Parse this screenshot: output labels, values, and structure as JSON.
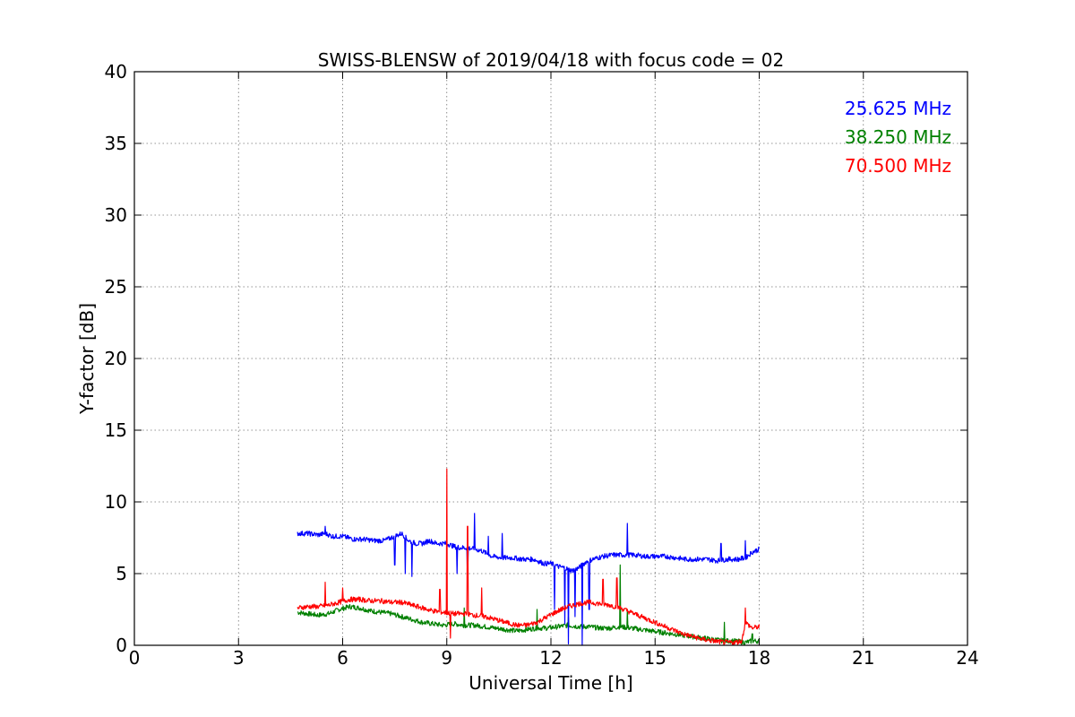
{
  "chart_data": {
    "type": "line",
    "title": "SWISS-BLENSW of 2019/04/18 with focus code = 02",
    "xlabel": "Universal Time [h]",
    "ylabel": "Y-factor [dB]",
    "xlim": [
      0,
      24
    ],
    "ylim": [
      0,
      40
    ],
    "xticks": [
      0,
      3,
      6,
      9,
      12,
      15,
      18,
      21,
      24
    ],
    "yticks": [
      0,
      5,
      10,
      15,
      20,
      25,
      30,
      35,
      40
    ],
    "grid": true,
    "legend_position": "top-right",
    "series": [
      {
        "name": "25.625 MHz",
        "color": "#0000ff",
        "x": [
          4.7,
          5.0,
          5.3,
          5.5,
          5.7,
          6.0,
          6.3,
          6.6,
          6.9,
          7.2,
          7.5,
          7.7,
          7.9,
          8.1,
          8.3,
          8.5,
          8.7,
          9.0,
          9.2,
          9.4,
          9.6,
          9.8,
          10.0,
          10.3,
          10.6,
          10.9,
          11.2,
          11.5,
          11.8,
          12.0,
          12.2,
          12.4,
          12.6,
          12.8,
          13.0,
          13.2,
          13.5,
          13.8,
          14.1,
          14.4,
          14.7,
          15.0,
          15.3,
          15.6,
          15.9,
          16.2,
          16.5,
          16.8,
          17.1,
          17.4,
          17.6,
          17.8,
          18.0
        ],
        "y": [
          7.8,
          7.8,
          7.7,
          7.8,
          7.6,
          7.6,
          7.4,
          7.4,
          7.3,
          7.3,
          7.6,
          7.8,
          7.3,
          7.1,
          7.1,
          7.3,
          7.1,
          7.1,
          6.9,
          6.8,
          6.8,
          6.7,
          6.6,
          6.2,
          6.1,
          6.1,
          6.0,
          6.0,
          5.7,
          5.7,
          5.5,
          5.4,
          5.2,
          5.4,
          5.8,
          6.0,
          6.2,
          6.3,
          6.3,
          6.3,
          6.2,
          6.2,
          6.2,
          6.1,
          6.0,
          6.0,
          6.0,
          5.9,
          6.0,
          6.0,
          6.1,
          6.5,
          6.7
        ],
        "spikes": [
          [
            5.5,
            8.3
          ],
          [
            7.5,
            5.6
          ],
          [
            7.8,
            5.0
          ],
          [
            8.0,
            4.8
          ],
          [
            9.3,
            5.0
          ],
          [
            9.6,
            5.2
          ],
          [
            9.8,
            9.2
          ],
          [
            10.2,
            7.6
          ],
          [
            10.6,
            7.8
          ],
          [
            12.1,
            2.5
          ],
          [
            12.4,
            1.5
          ],
          [
            12.5,
            0.1
          ],
          [
            12.7,
            2.0
          ],
          [
            12.9,
            0.0
          ],
          [
            13.1,
            2.5
          ],
          [
            14.2,
            8.5
          ],
          [
            16.9,
            7.1
          ],
          [
            17.6,
            7.3
          ]
        ]
      },
      {
        "name": "38.250 MHz",
        "color": "#008000",
        "x": [
          4.7,
          5.0,
          5.3,
          5.6,
          5.9,
          6.2,
          6.5,
          6.8,
          7.1,
          7.4,
          7.7,
          8.0,
          8.3,
          8.6,
          8.9,
          9.2,
          9.5,
          9.8,
          10.1,
          10.4,
          10.7,
          11.0,
          11.3,
          11.6,
          11.9,
          12.2,
          12.5,
          12.8,
          13.1,
          13.4,
          13.7,
          14.0,
          14.3,
          14.6,
          14.9,
          15.2,
          15.5,
          15.8,
          16.1,
          16.4,
          16.7,
          17.0,
          17.3,
          17.6,
          17.8,
          18.0
        ],
        "y": [
          2.3,
          2.2,
          2.1,
          2.2,
          2.5,
          2.7,
          2.6,
          2.4,
          2.3,
          2.2,
          2.0,
          1.8,
          1.6,
          1.5,
          1.4,
          1.5,
          1.4,
          1.4,
          1.3,
          1.2,
          1.1,
          1.0,
          1.1,
          1.2,
          1.2,
          1.3,
          1.4,
          1.3,
          1.3,
          1.2,
          1.2,
          1.3,
          1.2,
          1.1,
          1.0,
          0.9,
          0.8,
          0.7,
          0.6,
          0.5,
          0.4,
          0.3,
          0.3,
          0.2,
          0.3,
          0.3
        ],
        "spikes": [
          [
            9.5,
            2.6
          ],
          [
            11.6,
            2.5
          ],
          [
            12.5,
            2.0
          ],
          [
            14.0,
            5.6
          ],
          [
            14.2,
            2.5
          ],
          [
            17.0,
            1.6
          ],
          [
            17.8,
            0.8
          ]
        ]
      },
      {
        "name": "70.500 MHz",
        "color": "#ff0000",
        "x": [
          4.7,
          5.0,
          5.3,
          5.6,
          5.9,
          6.2,
          6.5,
          6.8,
          7.1,
          7.4,
          7.7,
          8.0,
          8.3,
          8.6,
          8.9,
          9.2,
          9.5,
          9.8,
          10.1,
          10.4,
          10.7,
          11.0,
          11.3,
          11.6,
          11.9,
          12.2,
          12.5,
          12.8,
          13.1,
          13.4,
          13.7,
          14.0,
          14.3,
          14.6,
          14.9,
          15.2,
          15.5,
          15.8,
          16.1,
          16.4,
          16.7,
          17.0,
          17.3,
          17.5,
          17.6,
          17.8,
          18.0
        ],
        "y": [
          2.6,
          2.7,
          2.7,
          2.8,
          3.0,
          3.2,
          3.2,
          3.1,
          3.1,
          3.0,
          3.0,
          2.8,
          2.6,
          2.4,
          2.3,
          2.2,
          2.2,
          2.1,
          2.0,
          1.8,
          1.6,
          1.4,
          1.4,
          1.6,
          2.0,
          2.4,
          2.7,
          2.9,
          3.0,
          2.9,
          2.8,
          2.6,
          2.3,
          2.0,
          1.7,
          1.4,
          1.1,
          0.8,
          0.6,
          0.4,
          0.3,
          0.2,
          0.2,
          0.3,
          1.6,
          1.2,
          1.3
        ],
        "spikes": [
          [
            5.5,
            4.4
          ],
          [
            6.0,
            4.0
          ],
          [
            8.8,
            3.9
          ],
          [
            9.0,
            12.3
          ],
          [
            9.1,
            0.5
          ],
          [
            9.6,
            8.3
          ],
          [
            10.0,
            4.0
          ],
          [
            13.5,
            4.6
          ],
          [
            13.9,
            4.7
          ],
          [
            17.6,
            2.6
          ]
        ]
      }
    ]
  }
}
